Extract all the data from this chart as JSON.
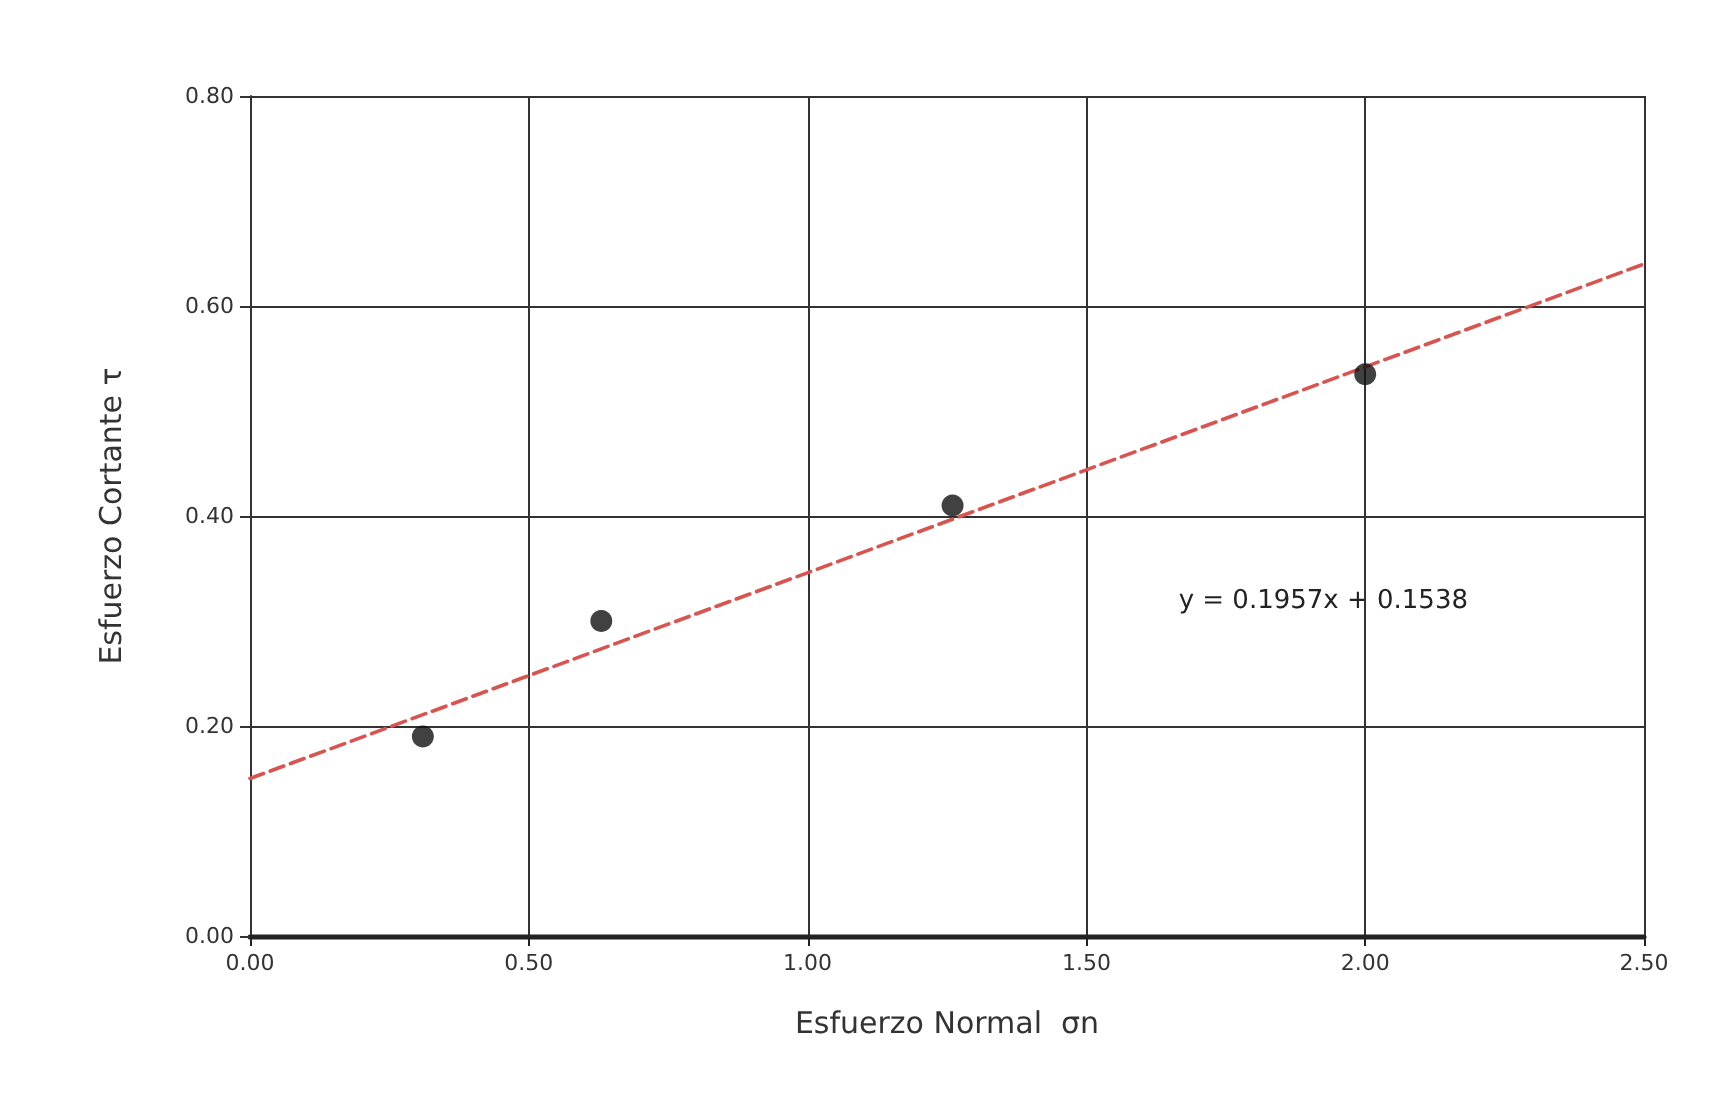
{
  "chart_data": {
    "type": "scatter",
    "xlabel": "Esfuerzo Normal  σn",
    "ylabel": "Esfuerzo Cortante τ",
    "annotations": [
      "y = 0.1957x + 0.1538"
    ],
    "series": [
      {
        "color": "#111111",
        "marker": "circle",
        "x": [
          0.31,
          0.63,
          1.26,
          2.0
        ],
        "values": [
          0.19,
          0.3,
          0.41,
          0.535
        ]
      },
      {
        "type": "line",
        "color": "#d9534f",
        "marker": "none",
        "line_style": "dashed",
        "x": [
          0,
          2.5
        ],
        "values": [
          0.15,
          0.64
        ]
      }
    ],
    "xlim": [
      0,
      2.5
    ],
    "ylim": [
      0,
      0.8
    ],
    "xticks": [
      {
        "value": 0,
        "label": "0.00"
      },
      {
        "value": 0.5,
        "label": "0.50"
      },
      {
        "value": 1,
        "label": "1.00"
      },
      {
        "value": 1.5,
        "label": "1.50"
      },
      {
        "value": 2,
        "label": "2.00"
      },
      {
        "value": 2.5,
        "label": "2.50"
      }
    ],
    "yticks": [
      {
        "value": 0,
        "label": "0.00"
      },
      {
        "value": 0.2,
        "label": "0.20"
      },
      {
        "value": 0.4,
        "label": "0.40"
      },
      {
        "value": 0.6,
        "label": "0.60"
      },
      {
        "value": 0.8,
        "label": "0.80"
      }
    ],
    "grid": true
  }
}
